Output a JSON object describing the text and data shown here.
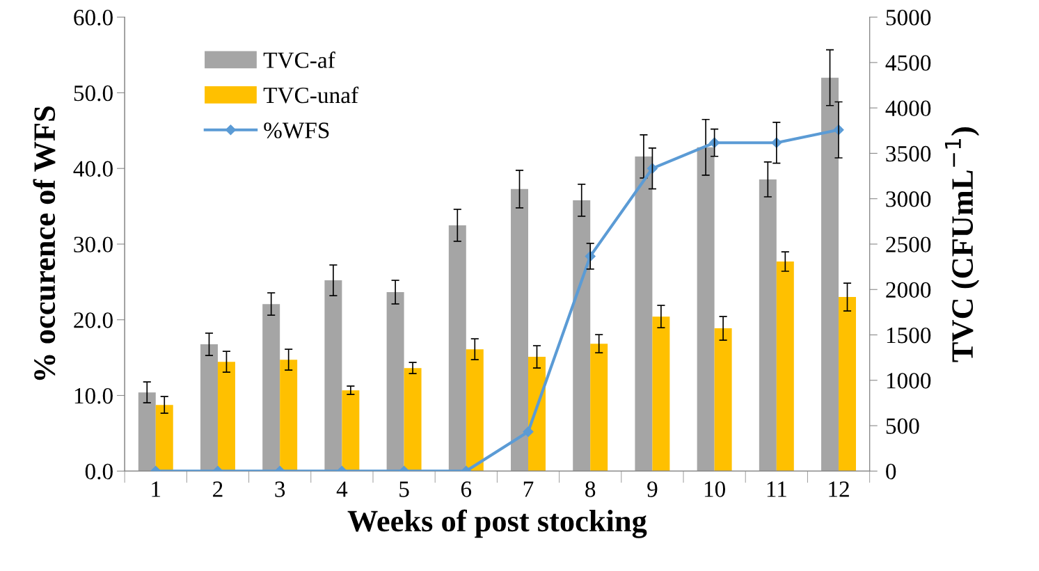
{
  "chart_data": {
    "type": "bar",
    "xlabel": "Weeks of post stocking",
    "ylabel": "% occurence of WFS",
    "y2label": "TVC (CFUmL$^{−1}$)",
    "categories": [
      "1",
      "2",
      "3",
      "4",
      "5",
      "6",
      "7",
      "8",
      "9",
      "10",
      "11",
      "12"
    ],
    "series": [
      {
        "name": "TVC-af",
        "axis": "y2",
        "color": "#a5a5a5",
        "values": [
          867,
          1396,
          1840,
          2101,
          1971,
          2707,
          3106,
          2983,
          3466,
          3566,
          3213,
          4333
        ],
        "errors": [
          115,
          123,
          123,
          169,
          130,
          176,
          207,
          176,
          238,
          307,
          192,
          307
        ]
      },
      {
        "name": "TVC-unaf",
        "axis": "y2",
        "color": "#ffc000",
        "values": [
          729,
          1204,
          1227,
          890,
          1135,
          1342,
          1258,
          1403,
          1702,
          1572,
          2308,
          1917
        ],
        "errors": [
          92,
          115,
          115,
          46,
          61,
          115,
          123,
          100,
          123,
          130,
          107,
          153
        ]
      },
      {
        "name": "%WFS",
        "type": "line",
        "color": "#5b9bd5",
        "marker": "diamond",
        "values": [
          0,
          0,
          0,
          0,
          0,
          0,
          5.2,
          28.4,
          40.0,
          43.4,
          43.4,
          45.1
        ],
        "errors": [
          null,
          null,
          null,
          null,
          null,
          null,
          null,
          1.7,
          2.7,
          1.8,
          2.7,
          3.7
        ]
      }
    ],
    "ylim": [
      0,
      60
    ],
    "yticks": [
      {
        "value": 0,
        "label": "0.0"
      },
      {
        "value": 10,
        "label": "10.0"
      },
      {
        "value": 20,
        "label": "20.0"
      },
      {
        "value": 30,
        "label": "30.0"
      },
      {
        "value": 40,
        "label": "40.0"
      },
      {
        "value": 50,
        "label": "50.0"
      },
      {
        "value": 60,
        "label": "60.0"
      }
    ],
    "y2lim": [
      0,
      5000
    ],
    "y2ticks": [
      0,
      500,
      1000,
      1500,
      2000,
      2500,
      3000,
      3500,
      4000,
      4500,
      5000
    ],
    "grid": false,
    "legend": "top left"
  }
}
